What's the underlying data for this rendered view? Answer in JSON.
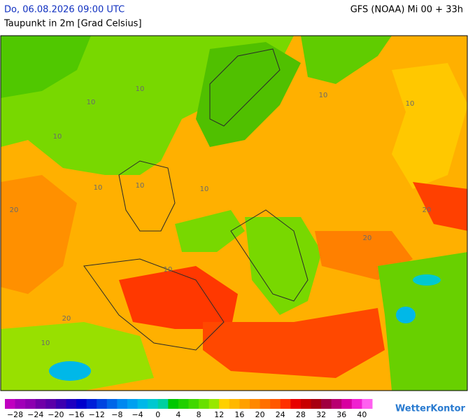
{
  "header": {
    "datetime": "Do, 06.08.2026 09:00 UTC",
    "subtitle": "Taupunkt in 2m [Grad Celsius]",
    "model": "GFS (NOAA) Mi 00 + 33h"
  },
  "map": {
    "contour_labels": [
      "10",
      "10",
      "10",
      "10",
      "20",
      "10",
      "10",
      "10",
      "10",
      "20",
      "10",
      "20",
      "10",
      "20"
    ]
  },
  "colorbar": {
    "lim": [
      -30,
      42
    ],
    "ticks": [
      {
        "value": -28,
        "label": "−28"
      },
      {
        "value": -24,
        "label": "−24"
      },
      {
        "value": -20,
        "label": "−20"
      },
      {
        "value": -16,
        "label": "−16"
      },
      {
        "value": -12,
        "label": "−12"
      },
      {
        "value": -8,
        "label": "−8"
      },
      {
        "value": -4,
        "label": "−4"
      },
      0,
      4,
      8,
      12,
      16,
      20,
      24,
      28,
      32,
      36,
      40
    ],
    "colors": [
      "#c000c0",
      "#a000b8",
      "#8c00b0",
      "#7000a8",
      "#5a00a8",
      "#3c00b0",
      "#1e00c0",
      "#0000cc",
      "#0020d8",
      "#0044e0",
      "#0066e8",
      "#0088f0",
      "#00a0f0",
      "#00b8e8",
      "#00c8d0",
      "#00d0a0",
      "#00c800",
      "#20d000",
      "#40d800",
      "#68e000",
      "#98e800",
      "#ffd000",
      "#ffb800",
      "#ffa000",
      "#ff8800",
      "#ff7000",
      "#ff5800",
      "#ff3000",
      "#e80000",
      "#c80000",
      "#a80010",
      "#a00040",
      "#b80070",
      "#d800a0",
      "#f020d0",
      "#ff60f0"
    ]
  },
  "logo": "WetterKontor"
}
